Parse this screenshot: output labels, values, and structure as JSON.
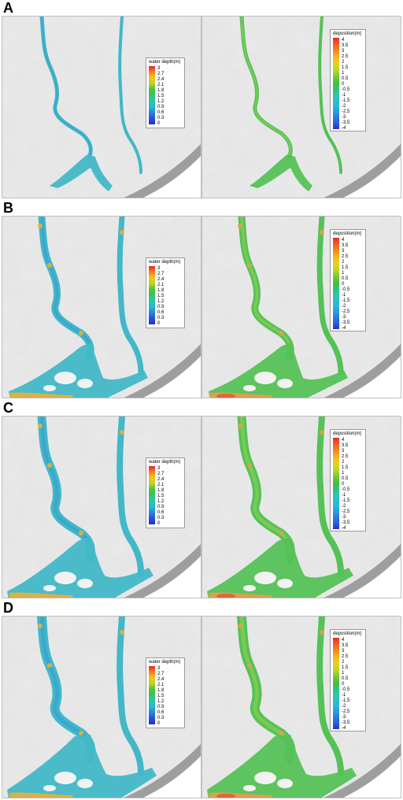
{
  "rows": [
    {
      "label": "A"
    },
    {
      "label": "B"
    },
    {
      "label": "C"
    },
    {
      "label": "D"
    }
  ],
  "legend_depth": {
    "title": "water depth(m)",
    "ticks": [
      "3",
      "2.7",
      "2.4",
      "2.1",
      "1.8",
      "1.5",
      "1.2",
      "0.9",
      "0.6",
      "0.3",
      "0"
    ],
    "colors": [
      "#e8262b",
      "#f3801f",
      "#f6c51c",
      "#b5d52a",
      "#4fc13a",
      "#33c36b",
      "#2ec6a8",
      "#27b5d9",
      "#2a83de",
      "#2a4fd8",
      "#2830c8"
    ]
  },
  "legend_deposition": {
    "title": "deposition(m)",
    "ticks": [
      "4",
      "3.5",
      "3",
      "2.5",
      "2",
      "1.5",
      "1",
      "0.5",
      "0",
      "-0.5",
      "-1",
      "-1.5",
      "-2",
      "-2.5",
      "-3",
      "-3.5",
      "-4"
    ],
    "colors": [
      "#e8262b",
      "#f05a24",
      "#f3801f",
      "#f6a81d",
      "#f6c51c",
      "#d5d726",
      "#a9d22d",
      "#6cc63a",
      "#3fbf3f",
      "#2fc27a",
      "#2ec6a8",
      "#29c0cf",
      "#27b5d9",
      "#2a99df",
      "#2a7bdd",
      "#2a5cd8",
      "#2830c8"
    ]
  },
  "colors": {
    "terrain": "#e4e4e4",
    "terrain_dark": "#bdbdbd",
    "depth_main": "#42b8c8",
    "depth_low": "#3a9fd0",
    "depth_high": "#e8b03a",
    "depo_main": "#55c257",
    "depo_low": "#8ccd52",
    "depo_high": "#e3a04a",
    "depo_peak": "#e05a3a"
  }
}
